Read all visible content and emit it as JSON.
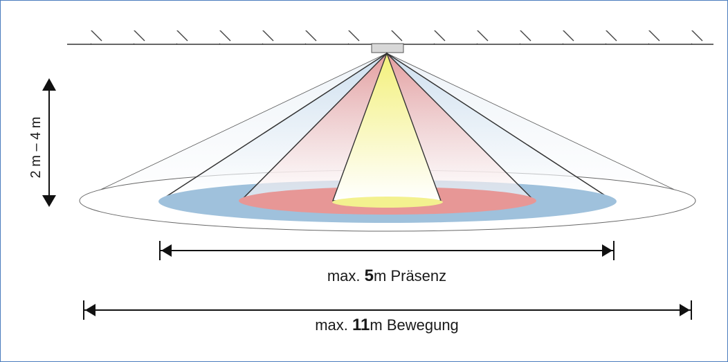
{
  "height_label": "2 m – 4 m",
  "presence": {
    "prefix": "max.",
    "value": "5",
    "suffix": "m Präsenz"
  },
  "movement": {
    "prefix": "max.",
    "value": "11",
    "suffix": "m Bewegung"
  },
  "colors": {
    "outer_zone": "#ffffff",
    "blue_zone": "#9fc1dc",
    "red_zone": "#e79796",
    "yellow_zone": "#f3f18f",
    "line": "#333333",
    "frame": "#4a7bbd"
  }
}
